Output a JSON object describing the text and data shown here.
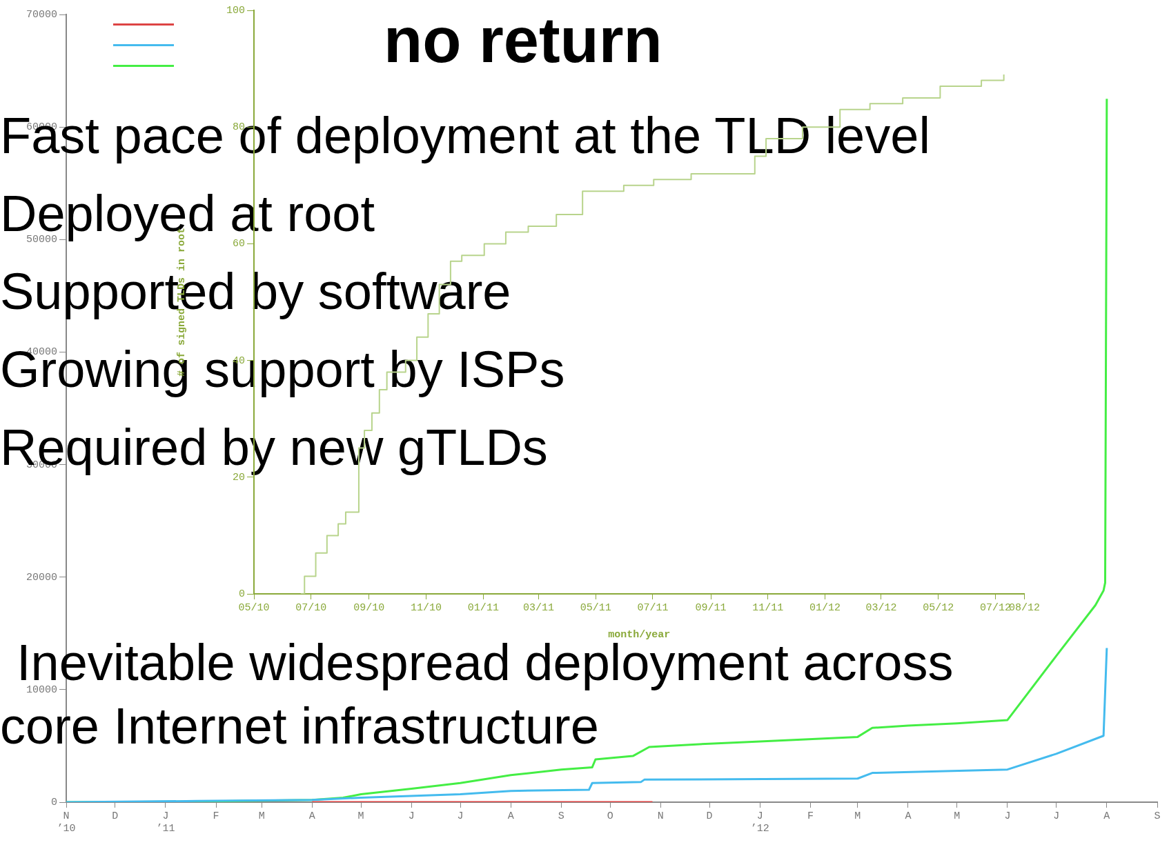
{
  "chart_data": [
    {
      "type": "line",
      "title": "no return",
      "annotations": [
        "Fast pace of deployment at the TLD level",
        "Deployed at root",
        "Supported by software",
        "Growing support by ISPs",
        "Required by new gTLDs",
        "Inevitable widespread deployment across core Internet infrastructure"
      ],
      "series": [
        {
          "color": "#dd4444",
          "x": [
            "2011-04-01",
            "2011-10-27"
          ],
          "values": [
            0,
            0
          ]
        },
        {
          "color": "#44bbee",
          "x": [
            "2010-11-01",
            "2011-01-20",
            "2011-04-01",
            "2011-05-01",
            "2011-07-01",
            "2011-08-01",
            "2011-09-18",
            "2011-09-20",
            "2011-10-20",
            "2011-10-22",
            "2012-03-01",
            "2012-03-10",
            "2012-06-01",
            "2012-07-01",
            "2012-07-30",
            "2012-08-01"
          ],
          "values": [
            0,
            100,
            200,
            400,
            700,
            1000,
            1100,
            1700,
            1800,
            2000,
            2100,
            2600,
            2900,
            4300,
            5900,
            13700
          ]
        },
        {
          "color": "#44ee44",
          "x": [
            "2010-11-01",
            "2011-01-15",
            "2011-04-01",
            "2011-04-20",
            "2011-05-01",
            "2011-06-01",
            "2011-07-01",
            "2011-08-01",
            "2011-09-01",
            "2011-09-20",
            "2011-09-22",
            "2011-10-15",
            "2011-10-25",
            "2011-12-01",
            "2012-01-01",
            "2012-03-01",
            "2012-03-10",
            "2012-04-01",
            "2012-05-01",
            "2012-06-01",
            "2012-07-01",
            "2012-07-25",
            "2012-07-30",
            "2012-07-31",
            "2012-08-01"
          ],
          "values": [
            0,
            50,
            200,
            400,
            700,
            1200,
            1700,
            2400,
            2900,
            3100,
            3800,
            4100,
            4900,
            5200,
            5400,
            5800,
            6600,
            6800,
            7000,
            7300,
            13000,
            17500,
            18800,
            19500,
            62500
          ]
        }
      ],
      "xlim": [
        "2010-11-01",
        "2012-09-01"
      ],
      "xticks": [
        {
          "value": "2010-11-01",
          "label": "N\n’10"
        },
        {
          "value": "2010-12-01",
          "label": "D"
        },
        {
          "value": "2011-01-01",
          "label": "J\n’11"
        },
        {
          "value": "2011-02-01",
          "label": "F"
        },
        {
          "value": "2011-03-01",
          "label": "M"
        },
        {
          "value": "2011-04-01",
          "label": "A"
        },
        {
          "value": "2011-05-01",
          "label": "M"
        },
        {
          "value": "2011-06-01",
          "label": "J"
        },
        {
          "value": "2011-07-01",
          "label": "J"
        },
        {
          "value": "2011-08-01",
          "label": "A"
        },
        {
          "value": "2011-09-01",
          "label": "S"
        },
        {
          "value": "2011-10-01",
          "label": "O"
        },
        {
          "value": "2011-11-01",
          "label": "N"
        },
        {
          "value": "2011-12-01",
          "label": "D"
        },
        {
          "value": "2012-01-01",
          "label": "J\n’12"
        },
        {
          "value": "2012-02-01",
          "label": "F"
        },
        {
          "value": "2012-03-01",
          "label": "M"
        },
        {
          "value": "2012-04-01",
          "label": "A"
        },
        {
          "value": "2012-05-01",
          "label": "M"
        },
        {
          "value": "2012-06-01",
          "label": "J"
        },
        {
          "value": "2012-07-01",
          "label": "J"
        },
        {
          "value": "2012-08-01",
          "label": "A"
        },
        {
          "value": "2012-09-01",
          "label": "S"
        }
      ],
      "ylim": [
        0,
        70000
      ],
      "yticks": [
        0,
        10000,
        20000,
        30000,
        40000,
        50000,
        60000,
        70000
      ],
      "grid": false
    },
    {
      "type": "step",
      "xlabel": "month/year",
      "ylabel": "# of signed TLDs in root",
      "x": [
        "2010-06-20",
        "2010-06-24",
        "2010-07-06",
        "2010-07-18",
        "2010-07-30",
        "2010-08-07",
        "2010-08-21",
        "2010-08-27",
        "2010-09-04",
        "2010-09-12",
        "2010-09-20",
        "2010-10-10",
        "2010-10-22",
        "2010-11-03",
        "2010-11-15",
        "2010-11-27",
        "2010-12-09",
        "2011-01-02",
        "2011-01-25",
        "2011-02-18",
        "2011-03-20",
        "2011-04-17",
        "2011-05-31",
        "2011-07-02",
        "2011-08-11",
        "2011-10-10",
        "2011-10-18",
        "2011-10-30",
        "2011-12-08",
        "2012-01-17",
        "2012-02-18",
        "2012-03-24",
        "2012-05-03",
        "2012-06-16",
        "2012-07-10"
      ],
      "values": [
        0,
        3,
        7,
        10,
        12,
        14,
        25,
        28,
        31,
        35,
        38,
        40,
        44,
        48,
        53,
        57,
        58,
        60,
        62,
        63,
        65,
        69,
        70,
        71,
        72,
        72,
        75,
        78,
        80,
        83,
        84,
        85,
        87,
        88,
        89
      ],
      "color": "#b8d48c",
      "xlim": [
        "2010-05-01",
        "2012-08-01"
      ],
      "xticks": [
        {
          "value": "2010-05-01",
          "label": "05/10"
        },
        {
          "value": "2010-07-01",
          "label": "07/10"
        },
        {
          "value": "2010-09-01",
          "label": "09/10"
        },
        {
          "value": "2010-11-01",
          "label": "11/10"
        },
        {
          "value": "2011-01-01",
          "label": "01/11"
        },
        {
          "value": "2011-03-01",
          "label": "03/11"
        },
        {
          "value": "2011-05-01",
          "label": "05/11"
        },
        {
          "value": "2011-07-01",
          "label": "07/11"
        },
        {
          "value": "2011-09-01",
          "label": "09/11"
        },
        {
          "value": "2011-11-01",
          "label": "11/11"
        },
        {
          "value": "2012-01-01",
          "label": "01/12"
        },
        {
          "value": "2012-03-01",
          "label": "03/12"
        },
        {
          "value": "2012-05-01",
          "label": "05/12"
        },
        {
          "value": "2012-07-01",
          "label": "07/12"
        },
        {
          "value": "2012-08-01",
          "label": "08/12"
        }
      ],
      "ylim": [
        0,
        100
      ],
      "yticks": [
        0,
        20,
        40,
        60,
        80,
        100
      ],
      "grid": false
    }
  ]
}
